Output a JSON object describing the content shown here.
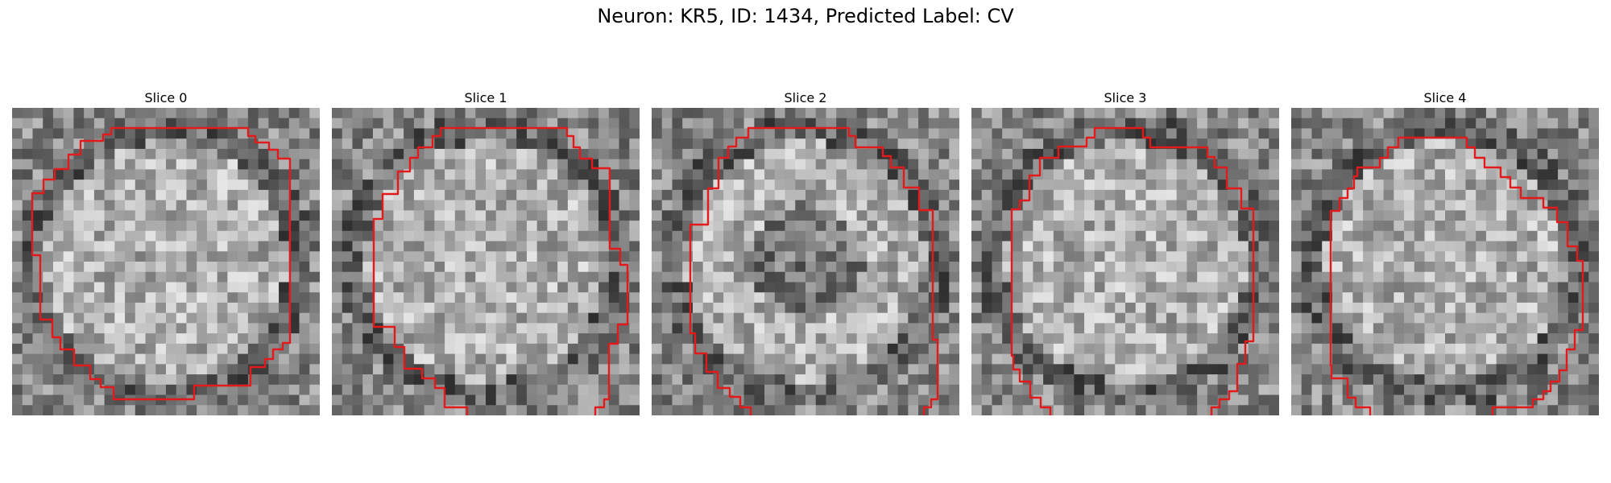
{
  "figure": {
    "title": "Neuron: KR5, ID: 1434, Predicted Label: CV"
  },
  "contour_color": "#e31a1c",
  "panels": [
    {
      "title": "Slice 0",
      "seed": 11,
      "dark_center": false
    },
    {
      "title": "Slice 1",
      "seed": 23,
      "dark_center": false
    },
    {
      "title": "Slice 2",
      "seed": 37,
      "dark_center": true
    },
    {
      "title": "Slice 3",
      "seed": 41,
      "dark_center": false
    },
    {
      "title": "Slice 4",
      "seed": 59,
      "dark_center": false
    }
  ]
}
